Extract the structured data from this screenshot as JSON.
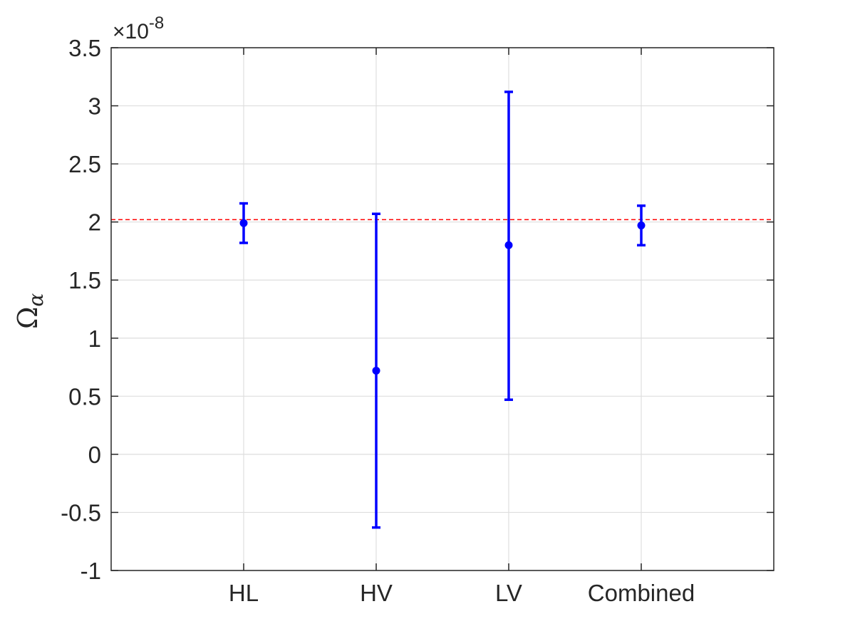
{
  "chart_data": {
    "type": "errorbar",
    "categories": [
      "HL",
      "HV",
      "LV",
      "Combined"
    ],
    "series": [
      {
        "values": [
          1.99e-08,
          7.2e-09,
          1.8e-08,
          1.97e-08
        ],
        "lower": [
          1.82e-08,
          -6.3e-09,
          4.7e-09,
          1.8e-08
        ],
        "upper": [
          2.16e-08,
          2.07e-08,
          3.12e-08,
          2.14e-08
        ]
      }
    ],
    "reference_line": {
      "value": 2.02e-08,
      "style": "dashed"
    },
    "ylabel": "Ω",
    "ylabel_subscript": "α",
    "ylim": [
      -1e-08,
      3.5e-08
    ],
    "yticks": [
      -1,
      -0.5,
      0,
      0.5,
      1,
      1.5,
      2,
      2.5,
      3,
      3.5
    ],
    "ytick_labels": [
      "-1",
      "-0.5",
      "0",
      "0.5",
      "1",
      "1.5",
      "2",
      "2.5",
      "3",
      "3.5"
    ],
    "y_multiplier": "×10",
    "y_exponent": "-8",
    "xlim": [
      0,
      5
    ],
    "grid": true,
    "colors": {
      "series": "#0000ff",
      "reference": "#ff0000",
      "grid": "#dedede",
      "axis": "#262626"
    }
  }
}
